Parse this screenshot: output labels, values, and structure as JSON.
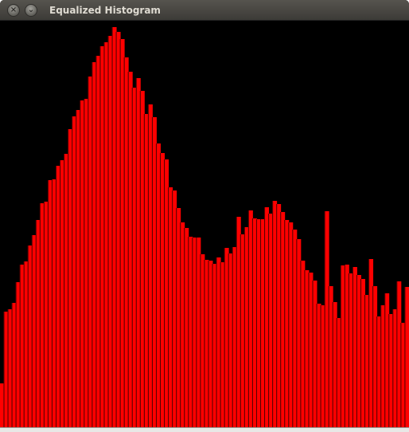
{
  "window": {
    "title": "Equalized Histogram",
    "close_glyph": "×",
    "minimize_glyph": "⌄",
    "background": "#000000"
  },
  "chart_data": {
    "type": "bar",
    "title": "",
    "xlabel": "",
    "ylabel": "",
    "grid": false,
    "bar_color": "#ff0000",
    "ylim": [
      0,
      510
    ],
    "series": [
      {
        "values": [
          55,
          145,
          148,
          156,
          182,
          204,
          208,
          228,
          241,
          260,
          281,
          283,
          310,
          311,
          328,
          335,
          343,
          374,
          390,
          398,
          410,
          412,
          440,
          458,
          466,
          478,
          483,
          491,
          502,
          496,
          487,
          464,
          446,
          426,
          438,
          422,
          393,
          405,
          389,
          356,
          344,
          336,
          301,
          297,
          275,
          257,
          250,
          239,
          238,
          238,
          217,
          210,
          209,
          205,
          213,
          207,
          225,
          218,
          226,
          264,
          242,
          251,
          272,
          262,
          261,
          261,
          276,
          268,
          284,
          280,
          270,
          260,
          257,
          248,
          236,
          209,
          197,
          194,
          184,
          155,
          153,
          271,
          177,
          157,
          137,
          203,
          204,
          193,
          201,
          191,
          186,
          166,
          211,
          177,
          139,
          153,
          168,
          142,
          148,
          183,
          131,
          176
        ]
      }
    ]
  }
}
